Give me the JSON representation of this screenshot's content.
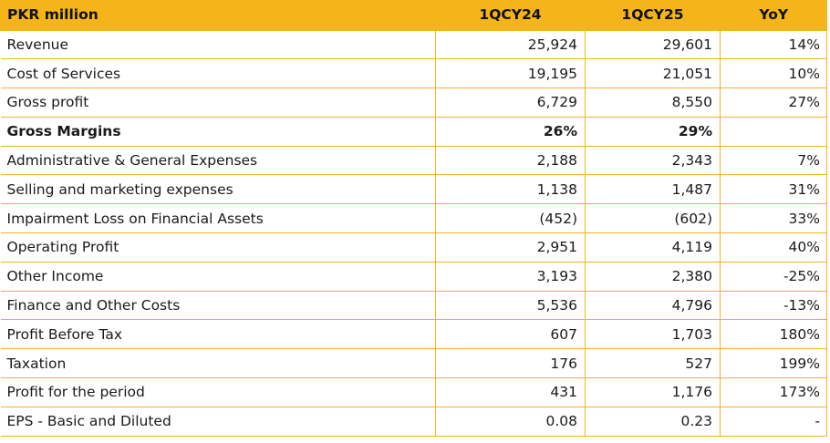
{
  "table": {
    "headers": [
      "PKR million",
      "1QCY24",
      "1QCY25",
      "YoY"
    ],
    "accent_color": "#f4b41a",
    "rows": [
      {
        "label": "Revenue",
        "q24": "25,924",
        "q25": "29,601",
        "yoy": "14%",
        "bold": false
      },
      {
        "label": "Cost of Services",
        "q24": "19,195",
        "q25": "21,051",
        "yoy": "10%",
        "bold": false
      },
      {
        "label": "Gross profit",
        "q24": "6,729",
        "q25": "8,550",
        "yoy": "27%",
        "bold": false
      },
      {
        "label": "Gross Margins",
        "q24": "26%",
        "q25": "29%",
        "yoy": "",
        "bold": true
      },
      {
        "label": "Administrative & General Expenses",
        "q24": "2,188",
        "q25": "2,343",
        "yoy": "7%",
        "bold": false
      },
      {
        "label": "Selling and marketing expenses",
        "q24": "1,138",
        "q25": "1,487",
        "yoy": "31%",
        "bold": false
      },
      {
        "label": "Impairment Loss on Financial Assets",
        "q24": "(452)",
        "q25": "(602)",
        "yoy": "33%",
        "bold": false
      },
      {
        "label": "Operating Profit",
        "q24": "2,951",
        "q25": "4,119",
        "yoy": "40%",
        "bold": false
      },
      {
        "label": "Other Income",
        "q24": "3,193",
        "q25": "2,380",
        "yoy": "-25%",
        "bold": false
      },
      {
        "label": "Finance and Other Costs",
        "q24": "5,536",
        "q25": "4,796",
        "yoy": "-13%",
        "bold": false
      },
      {
        "label": "Profit Before Tax",
        "q24": "607",
        "q25": "1,703",
        "yoy": "180%",
        "bold": false
      },
      {
        "label": "Taxation",
        "q24": "176",
        "q25": "527",
        "yoy": "199%",
        "bold": false
      },
      {
        "label": "Profit for the period",
        "q24": "431",
        "q25": "1,176",
        "yoy": "173%",
        "bold": false
      },
      {
        "label": "EPS - Basic and Diluted",
        "q24": "0.08",
        "q25": "0.23",
        "yoy": "-",
        "bold": false
      }
    ]
  }
}
